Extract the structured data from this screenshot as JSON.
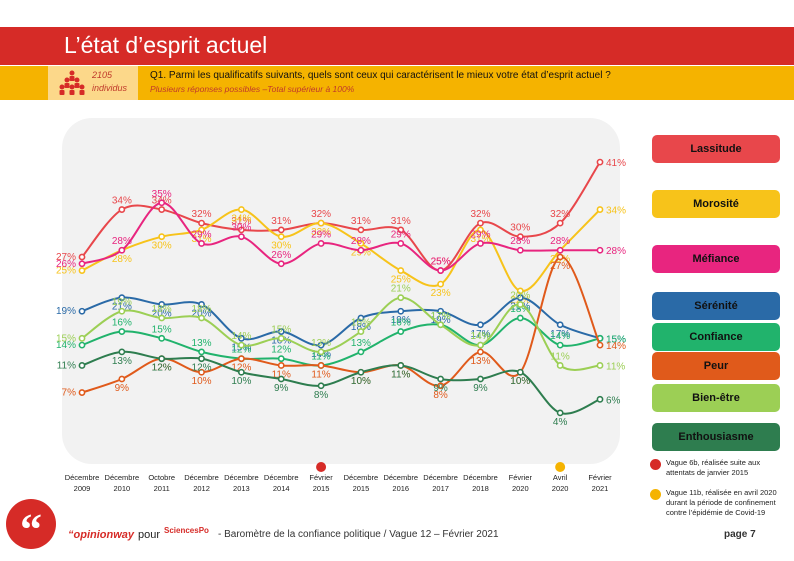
{
  "header": {
    "title": "L’état d’esprit actuel",
    "sample_n": "2105",
    "sample_label": "individus",
    "question": "Q1. Parmi les qualificatifs suivants, quels sont ceux qui caractérisent le mieux votre état d’esprit actuel ?",
    "question_note": "Plusieurs réponses possibles –Total supérieur à 100%"
  },
  "chart_data": {
    "type": "line",
    "categories": [
      [
        "Décembre",
        "2009"
      ],
      [
        "Décembre",
        "2010"
      ],
      [
        "Octobre",
        "2011"
      ],
      [
        "Décembre",
        "2012"
      ],
      [
        "Décembre",
        "2013"
      ],
      [
        "Décembre",
        "2014"
      ],
      [
        "Février",
        "2015"
      ],
      [
        "Décembre",
        "2015"
      ],
      [
        "Décembre",
        "2016"
      ],
      [
        "Décembre",
        "2017"
      ],
      [
        "Décembre",
        "2018"
      ],
      [
        "Février",
        "2020"
      ],
      [
        "Avril",
        "2020"
      ],
      [
        "Février",
        "2021"
      ]
    ],
    "series": [
      {
        "name": "Lassitude",
        "color": "#e8474b",
        "values": [
          27,
          34,
          34,
          32,
          31,
          31,
          32,
          31,
          31,
          25,
          32,
          30,
          32,
          41
        ]
      },
      {
        "name": "Morosité",
        "color": "#f7c31a",
        "values": [
          25,
          28,
          30,
          31,
          34,
          30,
          32,
          29,
          25,
          23,
          31,
          22,
          28,
          34
        ]
      },
      {
        "name": "Méfiance",
        "color": "#e8257f",
        "values": [
          26,
          28,
          35,
          29,
          30,
          26,
          29,
          28,
          29,
          25,
          29,
          28,
          28,
          28
        ]
      },
      {
        "name": "Sérénité",
        "color": "#2a6aa7",
        "values": [
          19,
          21,
          20,
          20,
          15,
          16,
          14,
          18,
          19,
          19,
          17,
          21,
          17,
          15
        ]
      },
      {
        "name": "Confiance",
        "color": "#21b36c",
        "values": [
          14,
          16,
          15,
          13,
          12,
          12,
          11,
          13,
          16,
          17,
          14,
          18,
          14,
          15
        ]
      },
      {
        "name": "Peur",
        "color": "#e05a1b",
        "values": [
          7,
          9,
          12,
          10,
          12,
          11,
          11,
          10,
          11,
          8,
          13,
          10,
          27,
          14
        ]
      },
      {
        "name": "Bien-être",
        "color": "#9ccf55",
        "values": [
          15,
          19,
          18,
          18,
          14,
          15,
          13,
          16,
          21,
          17,
          14,
          20,
          11,
          11
        ]
      },
      {
        "name": "Enthousiasme",
        "color": "#2e7d4f",
        "values": [
          11,
          13,
          12,
          12,
          10,
          9,
          8,
          10,
          11,
          9,
          9,
          10,
          4,
          6
        ]
      }
    ],
    "ylim": [
      0,
      45
    ],
    "legend_position": "right",
    "marked_points": [
      {
        "category_index": 6,
        "color": "#d62b27"
      },
      {
        "category_index": 12,
        "color": "#f5b300"
      }
    ]
  },
  "notes": [
    {
      "color": "#d62b27",
      "text": "Vague 6b, réalisée suite aux attentats de janvier 2015"
    },
    {
      "color": "#f5b300",
      "text": "Vague 11b, réalisée en avril 2020 durant la période de confinement contre l’épidémie de Covid-19"
    }
  ],
  "footer": {
    "brand": "opinionway",
    "pour": "pour",
    "partner": "SciencesPo",
    "barometre": "-  Baromètre de la confiance politique / Vague 12 – Février 2021",
    "page": "page 7"
  }
}
